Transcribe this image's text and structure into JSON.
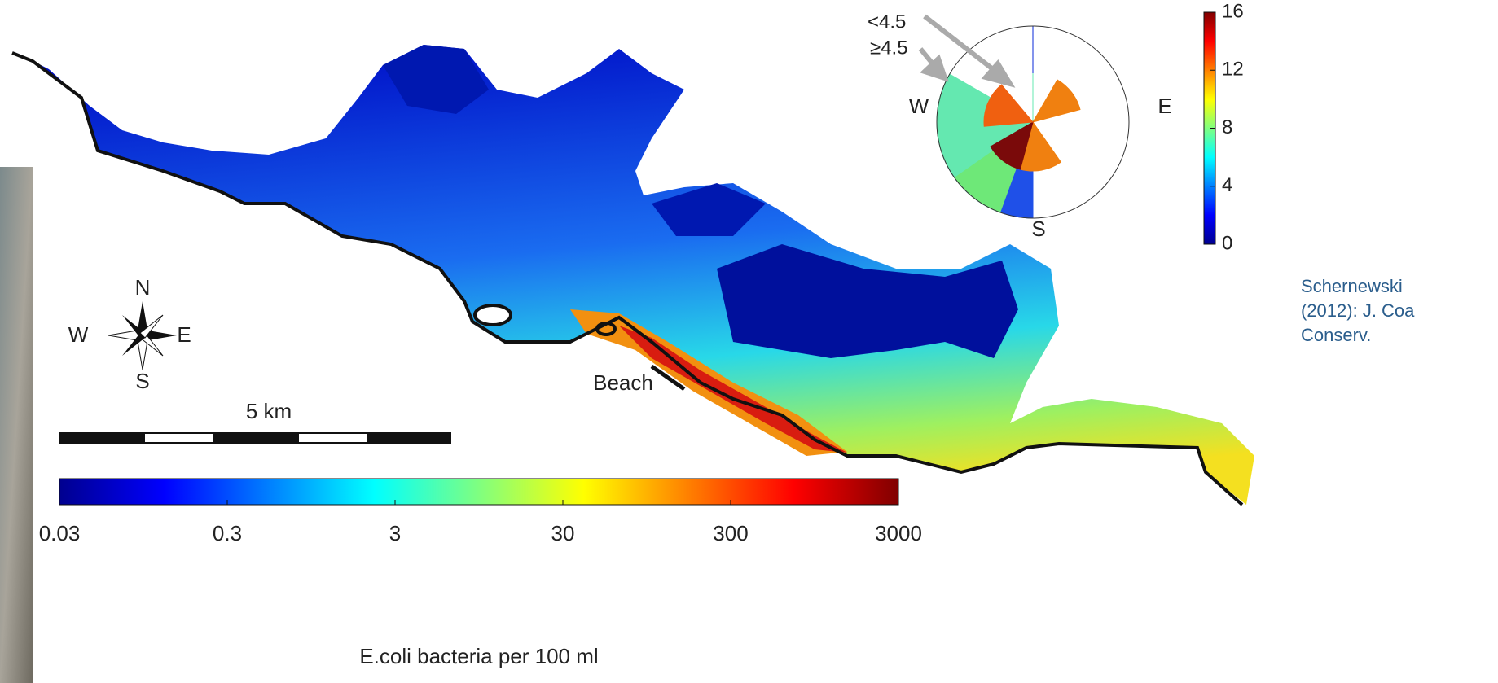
{
  "wind_rose": {
    "speed_labels": [
      "<4.5",
      "≥4.5"
    ],
    "directions": [
      "W",
      "E",
      "S"
    ],
    "colorbar": {
      "lim": [
        0,
        16
      ],
      "ticks": [
        0,
        4,
        8,
        12,
        16
      ]
    }
  },
  "citation": {
    "lines": [
      "Schernewski",
      "(2012): J. Coa",
      "Conserv."
    ]
  },
  "compass": {
    "labels": [
      "N",
      "W",
      "E",
      "S"
    ]
  },
  "scale_bar": {
    "label": "5 km"
  },
  "map": {
    "annotation": "Beach"
  },
  "concentration_colorbar": {
    "scale": "log",
    "lim": [
      0.03,
      3000
    ],
    "ticks": [
      0.03,
      0.3,
      3,
      30,
      300,
      3000
    ],
    "label": "E.coli bacteria per 100 ml"
  }
}
